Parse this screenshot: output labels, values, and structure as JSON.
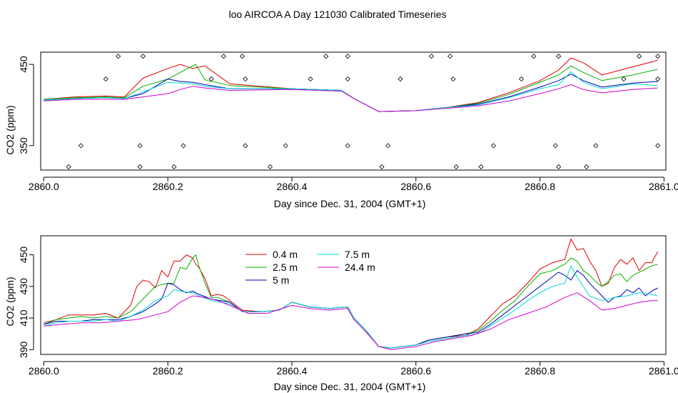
{
  "title": "loo AIRCOA A  Day 121030  Calibrated Timeseries",
  "colors": {
    "red": "#e00000",
    "green": "#00b000",
    "blue": "#0000b0",
    "cyan": "#00d8d8",
    "magenta": "#d000d0"
  },
  "chart_data": [
    {
      "type": "line",
      "xlabel": "Day since Dec. 31, 2004 (GMT+1)",
      "ylabel": "CO2 (ppm)",
      "xlim": [
        2859.995,
        2861.003
      ],
      "ylim": [
        320,
        465
      ],
      "x_ticks": [
        "2860.0",
        "2860.2",
        "2860.4",
        "2860.6",
        "2860.8",
        "2861.0"
      ],
      "y_ticks": [
        "350",
        "450"
      ],
      "y_tick_values": [
        350,
        450
      ],
      "note_markers": "points",
      "series": [
        {
          "name": "0.4 m",
          "color": "red",
          "x": [
            2860.0,
            2860.05,
            2860.1,
            2860.13,
            2860.16,
            2860.2,
            2860.22,
            2860.24,
            2860.26,
            2860.3,
            2860.4,
            2860.48,
            2860.5,
            2860.54,
            2860.6,
            2860.65,
            2860.7,
            2860.75,
            2860.8,
            2860.83,
            2860.85,
            2860.87,
            2860.9,
            2860.95,
            2860.99
          ],
          "y": [
            407,
            410,
            411,
            410,
            433,
            445,
            450,
            445,
            448,
            426,
            420,
            418,
            408,
            392,
            393,
            397,
            403,
            415,
            430,
            443,
            458,
            452,
            437,
            447,
            455
          ]
        },
        {
          "name": "2.5 m",
          "color": "green",
          "x": [
            2860.0,
            2860.05,
            2860.1,
            2860.13,
            2860.16,
            2860.2,
            2860.22,
            2860.245,
            2860.26,
            2860.3,
            2860.4,
            2860.48,
            2860.5,
            2860.54,
            2860.6,
            2860.65,
            2860.7,
            2860.75,
            2860.8,
            2860.83,
            2860.85,
            2860.87,
            2860.9,
            2860.95,
            2860.99
          ],
          "y": [
            407,
            409,
            410,
            409,
            423,
            432,
            440,
            450,
            431,
            424,
            420,
            418,
            408,
            392,
            393,
            397,
            402,
            413,
            428,
            437,
            448,
            440,
            430,
            437,
            444
          ]
        },
        {
          "name": "5 m",
          "color": "blue",
          "x": [
            2860.0,
            2860.05,
            2860.1,
            2860.13,
            2860.16,
            2860.2,
            2860.22,
            2860.24,
            2860.26,
            2860.3,
            2860.4,
            2860.48,
            2860.5,
            2860.54,
            2860.6,
            2860.65,
            2860.7,
            2860.75,
            2860.8,
            2860.83,
            2860.85,
            2860.87,
            2860.9,
            2860.95,
            2860.99
          ],
          "y": [
            406,
            408,
            409,
            408,
            414,
            432,
            429,
            428,
            425,
            420,
            420,
            418,
            408,
            392,
            393,
            397,
            401,
            410,
            422,
            430,
            438,
            430,
            422,
            427,
            429
          ]
        },
        {
          "name": "7.5 m",
          "color": "cyan",
          "x": [
            2860.0,
            2860.05,
            2860.1,
            2860.13,
            2860.16,
            2860.2,
            2860.22,
            2860.24,
            2860.26,
            2860.3,
            2860.4,
            2860.48,
            2860.5,
            2860.54,
            2860.6,
            2860.65,
            2860.7,
            2860.75,
            2860.8,
            2860.83,
            2860.85,
            2860.87,
            2860.9,
            2860.95,
            2860.99
          ],
          "y": [
            406,
            408,
            409,
            408,
            416,
            428,
            427,
            426,
            423,
            420,
            420,
            418,
            408,
            392,
            393,
            397,
            400,
            409,
            420,
            425,
            441,
            428,
            420,
            426,
            424
          ]
        },
        {
          "name": "24.4 m",
          "color": "magenta",
          "x": [
            2860.0,
            2860.05,
            2860.1,
            2860.13,
            2860.16,
            2860.2,
            2860.22,
            2860.24,
            2860.26,
            2860.3,
            2860.4,
            2860.48,
            2860.5,
            2860.54,
            2860.6,
            2860.65,
            2860.7,
            2860.75,
            2860.8,
            2860.83,
            2860.85,
            2860.87,
            2860.9,
            2860.95,
            2860.99
          ],
          "y": [
            405,
            407,
            407,
            407,
            410,
            414,
            419,
            423,
            421,
            418,
            419,
            417,
            408,
            392,
            393,
            396,
            399,
            405,
            414,
            420,
            425,
            419,
            415,
            419,
            421
          ]
        }
      ],
      "points": {
        "x": [
          2860.04,
          2860.06,
          2860.12,
          2860.1,
          2860.155,
          2860.16,
          2860.155,
          2860.21,
          2860.225,
          2860.27,
          2860.29,
          2860.32,
          2860.325,
          2860.325,
          2860.365,
          2860.39,
          2860.43,
          2860.455,
          2860.49,
          2860.49,
          2860.49,
          2860.545,
          2860.555,
          2860.575,
          2860.625,
          2860.655,
          2860.66,
          2860.665,
          2860.705,
          2860.725,
          2860.77,
          2860.79,
          2860.825,
          2860.83,
          2860.83,
          2860.875,
          2860.89,
          2860.935,
          2860.96,
          2860.99,
          2860.99,
          2860.99
        ],
        "y": [
          324,
          350,
          460,
          432,
          350,
          460,
          324,
          324,
          350,
          432,
          460,
          460,
          432,
          350,
          324,
          350,
          432,
          460,
          460,
          432,
          350,
          324,
          350,
          432,
          460,
          460,
          432,
          324,
          324,
          350,
          432,
          460,
          350,
          460,
          324,
          324,
          350,
          432,
          460,
          460,
          432,
          350
        ]
      }
    },
    {
      "type": "line",
      "xlabel": "Day since Dec. 31, 2004 (GMT+1)",
      "ylabel": "CO2 (ppm)",
      "xlim": [
        2859.995,
        2861.003
      ],
      "ylim": [
        387,
        462
      ],
      "x_ticks": [
        "2860.0",
        "2860.2",
        "2860.4",
        "2860.6",
        "2860.8",
        "2861.0"
      ],
      "y_ticks": [
        "390",
        "410",
        "430",
        "450"
      ],
      "y_tick_values": [
        390,
        410,
        430,
        450
      ],
      "legend": {
        "placement": "top-center",
        "columns": 2
      },
      "series": [
        {
          "name": "0.4 m",
          "color": "red",
          "x": [
            2860.0,
            2860.02,
            2860.04,
            2860.06,
            2860.08,
            2860.1,
            2860.12,
            2860.14,
            2860.15,
            2860.16,
            2860.17,
            2860.18,
            2860.19,
            2860.2,
            2860.21,
            2860.22,
            2860.23,
            2860.24,
            2860.245,
            2860.25,
            2860.26,
            2860.27,
            2860.28,
            2860.29,
            2860.3,
            2860.32,
            2860.35,
            2860.38,
            2860.4,
            2860.43,
            2860.46,
            2860.49,
            2860.5,
            2860.52,
            2860.54,
            2860.56,
            2860.58,
            2860.6,
            2860.62,
            2860.65,
            2860.68,
            2860.7,
            2860.72,
            2860.74,
            2860.76,
            2860.78,
            2860.8,
            2860.82,
            2860.84,
            2860.85,
            2860.86,
            2860.87,
            2860.88,
            2860.89,
            2860.9,
            2860.91,
            2860.92,
            2860.93,
            2860.94,
            2860.95,
            2860.96,
            2860.97,
            2860.98,
            2860.99
          ],
          "y": [
            407,
            409,
            412,
            412,
            412,
            413,
            410,
            418,
            430,
            434,
            433,
            429,
            440,
            436,
            446,
            446,
            450,
            448,
            444,
            442,
            435,
            424,
            425,
            424,
            421,
            415,
            414,
            415,
            420,
            417,
            416,
            417,
            410,
            402,
            392,
            391,
            392,
            393,
            396,
            398,
            399,
            403,
            411,
            419,
            424,
            432,
            441,
            445,
            447,
            460,
            453,
            454,
            446,
            440,
            430,
            432,
            442,
            447,
            444,
            448,
            440,
            445,
            445,
            452
          ]
        },
        {
          "name": "2.5 m",
          "color": "green",
          "x": [
            2860.0,
            2860.02,
            2860.04,
            2860.06,
            2860.08,
            2860.1,
            2860.12,
            2860.14,
            2860.16,
            2860.18,
            2860.2,
            2860.21,
            2860.22,
            2860.23,
            2860.24,
            2860.245,
            2860.25,
            2860.26,
            2860.27,
            2860.28,
            2860.3,
            2860.32,
            2860.35,
            2860.38,
            2860.4,
            2860.43,
            2860.46,
            2860.49,
            2860.5,
            2860.52,
            2860.54,
            2860.56,
            2860.58,
            2860.6,
            2860.62,
            2860.65,
            2860.68,
            2860.7,
            2860.72,
            2860.74,
            2860.76,
            2860.78,
            2860.8,
            2860.82,
            2860.84,
            2860.85,
            2860.86,
            2860.87,
            2860.88,
            2860.89,
            2860.9,
            2860.91,
            2860.92,
            2860.93,
            2860.94,
            2860.95,
            2860.96,
            2860.97,
            2860.98,
            2860.99
          ],
          "y": [
            406,
            409,
            410,
            411,
            410,
            411,
            410,
            414,
            422,
            430,
            432,
            432,
            442,
            441,
            448,
            450,
            443,
            432,
            423,
            423,
            420,
            414,
            414,
            415,
            420,
            417,
            416,
            417,
            410,
            402,
            392,
            391,
            392,
            393,
            396,
            398,
            400,
            402,
            408,
            415,
            421,
            430,
            438,
            440,
            444,
            448,
            446,
            440,
            437,
            433,
            430,
            433,
            437,
            438,
            433,
            437,
            439,
            441,
            443,
            444
          ]
        },
        {
          "name": "5 m",
          "color": "blue",
          "x": [
            2860.0,
            2860.02,
            2860.04,
            2860.06,
            2860.08,
            2860.1,
            2860.12,
            2860.14,
            2860.16,
            2860.18,
            2860.19,
            2860.2,
            2860.21,
            2860.22,
            2860.23,
            2860.24,
            2860.25,
            2860.27,
            2860.3,
            2860.32,
            2860.35,
            2860.38,
            2860.4,
            2860.43,
            2860.46,
            2860.49,
            2860.5,
            2860.52,
            2860.54,
            2860.56,
            2860.58,
            2860.6,
            2860.62,
            2860.65,
            2860.68,
            2860.7,
            2860.72,
            2860.74,
            2860.76,
            2860.78,
            2860.8,
            2860.82,
            2860.83,
            2860.84,
            2860.85,
            2860.86,
            2860.87,
            2860.88,
            2860.89,
            2860.9,
            2860.91,
            2860.92,
            2860.93,
            2860.94,
            2860.95,
            2860.96,
            2860.97,
            2860.98,
            2860.99
          ],
          "y": [
            406,
            408,
            408,
            408,
            409,
            409,
            409,
            411,
            414,
            419,
            422,
            432,
            431,
            428,
            426,
            427,
            425,
            422,
            420,
            414,
            414,
            415,
            420,
            417,
            416,
            417,
            410,
            402,
            392,
            391,
            392,
            393,
            396,
            398,
            400,
            401,
            406,
            412,
            418,
            424,
            430,
            436,
            439,
            437,
            434,
            440,
            437,
            432,
            428,
            424,
            420,
            423,
            424,
            428,
            426,
            429,
            424,
            427,
            429
          ]
        },
        {
          "name": "7.5 m",
          "color": "cyan",
          "x": [
            2860.0,
            2860.02,
            2860.04,
            2860.06,
            2860.08,
            2860.1,
            2860.12,
            2860.14,
            2860.16,
            2860.18,
            2860.2,
            2860.21,
            2860.22,
            2860.24,
            2860.25,
            2860.27,
            2860.3,
            2860.32,
            2860.35,
            2860.38,
            2860.4,
            2860.43,
            2860.46,
            2860.49,
            2860.5,
            2860.52,
            2860.54,
            2860.56,
            2860.58,
            2860.6,
            2860.62,
            2860.65,
            2860.68,
            2860.7,
            2860.72,
            2860.74,
            2860.76,
            2860.78,
            2860.8,
            2860.82,
            2860.84,
            2860.85,
            2860.86,
            2860.87,
            2860.88,
            2860.9,
            2860.92,
            2860.94,
            2860.96,
            2860.98,
            2860.99
          ],
          "y": [
            405,
            407,
            408,
            408,
            408,
            409,
            408,
            411,
            415,
            421,
            424,
            428,
            427,
            426,
            424,
            421,
            419,
            414,
            414,
            415,
            420,
            417,
            416,
            417,
            410,
            402,
            392,
            391,
            392,
            393,
            395,
            397,
            399,
            400,
            405,
            410,
            415,
            421,
            426,
            430,
            432,
            443,
            436,
            430,
            424,
            421,
            423,
            424,
            426,
            425,
            424
          ]
        },
        {
          "name": "24.4 m",
          "color": "magenta",
          "x": [
            2860.0,
            2860.03,
            2860.06,
            2860.09,
            2860.12,
            2860.15,
            2860.18,
            2860.2,
            2860.22,
            2860.24,
            2860.26,
            2860.28,
            2860.3,
            2860.33,
            2860.36,
            2860.4,
            2860.43,
            2860.46,
            2860.49,
            2860.5,
            2860.52,
            2860.54,
            2860.56,
            2860.58,
            2860.6,
            2860.63,
            2860.66,
            2860.69,
            2860.72,
            2860.75,
            2860.78,
            2860.81,
            2860.84,
            2860.86,
            2860.88,
            2860.9,
            2860.92,
            2860.94,
            2860.96,
            2860.98,
            2860.99
          ],
          "y": [
            405,
            406,
            407,
            407,
            408,
            409,
            412,
            414,
            420,
            424,
            423,
            421,
            418,
            413,
            413,
            418,
            416,
            415,
            416,
            409,
            401,
            392,
            390,
            391,
            392,
            395,
            397,
            399,
            403,
            409,
            413,
            417,
            423,
            426,
            421,
            415,
            416,
            418,
            420,
            421,
            421
          ]
        }
      ]
    }
  ]
}
